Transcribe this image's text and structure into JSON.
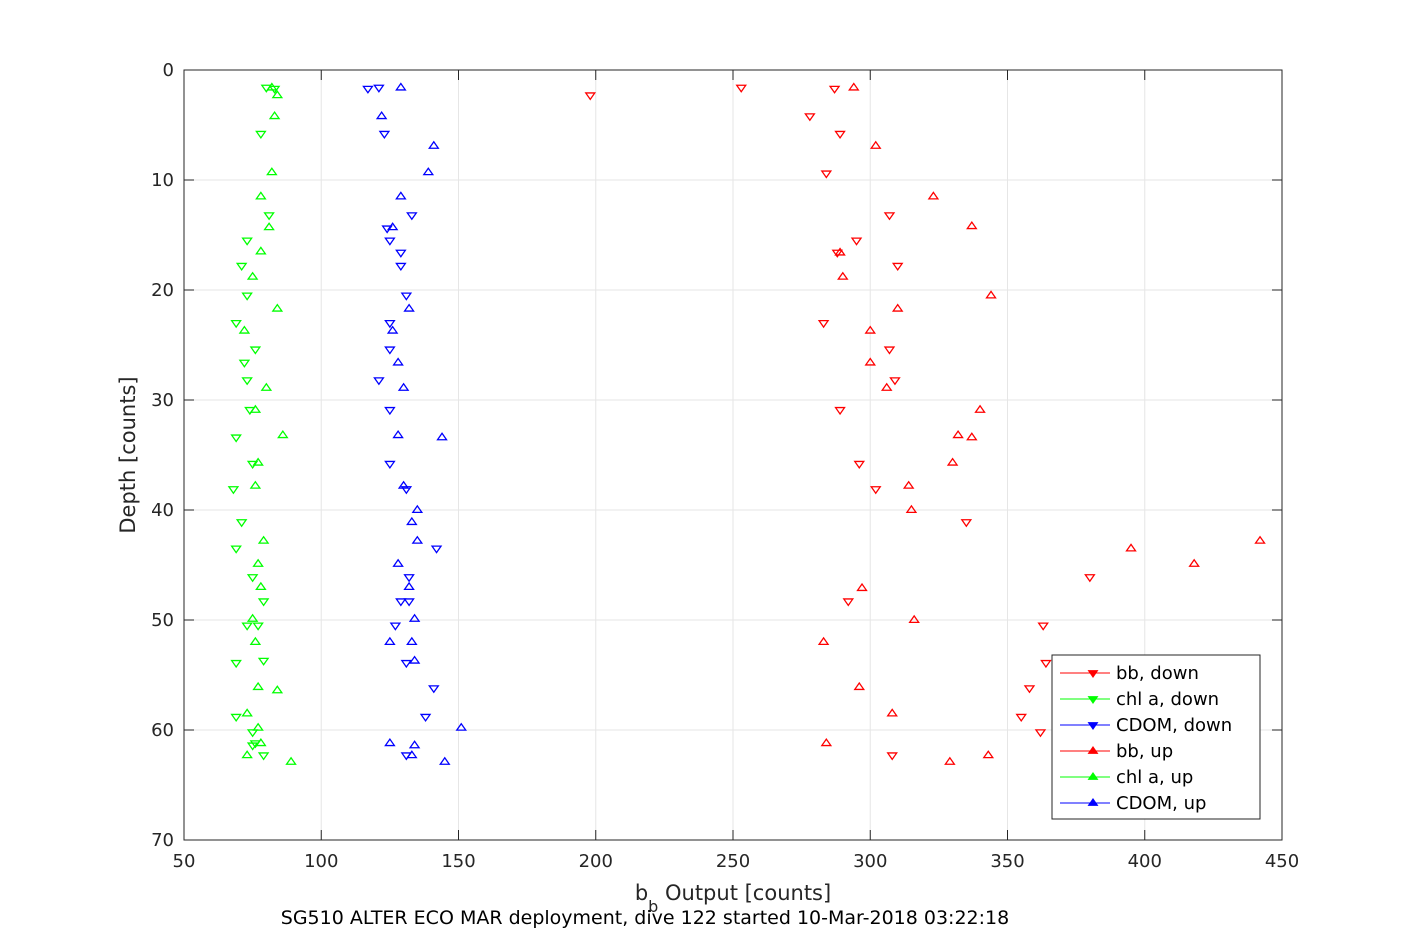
{
  "chart_data": {
    "type": "scatter",
    "title": "",
    "xlabel_main": "b",
    "xlabel_sub": "b",
    "xlabel_rest": " Output [counts]",
    "ylabel": "Depth [counts]",
    "caption": "SG510 ALTER ECO MAR deployment, dive 122 started 10-Mar-2018 03:22:18",
    "xlim": [
      50,
      450
    ],
    "ylim": [
      0,
      70
    ],
    "y_reversed": true,
    "grid": true,
    "legend_position": "bottom-right",
    "x_ticks": [
      "50",
      "100",
      "150",
      "200",
      "250",
      "300",
      "350",
      "400",
      "450"
    ],
    "y_ticks": [
      "0",
      "10",
      "20",
      "30",
      "40",
      "50",
      "60",
      "70"
    ],
    "series": [
      {
        "name": "bb, down",
        "color": "#ff0000",
        "marker": "triangle-down",
        "x": [
          253,
          198,
          287,
          278,
          289,
          284,
          307,
          295,
          288,
          310,
          283,
          307,
          309,
          289,
          296,
          302,
          335,
          380,
          292,
          363,
          364,
          358,
          355,
          362,
          308
        ],
        "y": [
          1.6,
          2.3,
          1.7,
          4.2,
          5.8,
          9.4,
          13.2,
          15.5,
          16.6,
          17.8,
          23.0,
          25.4,
          28.2,
          30.9,
          35.8,
          38.1,
          41.1,
          46.1,
          48.3,
          50.5,
          53.9,
          56.2,
          58.8,
          60.2,
          62.3
        ]
      },
      {
        "name": "chl a, down",
        "color": "#00ff00",
        "marker": "triangle-down",
        "x": [
          80,
          83,
          78,
          81,
          73,
          71,
          73,
          69,
          76,
          72,
          73,
          74,
          69,
          75,
          68,
          71,
          69,
          75,
          79,
          77,
          73,
          79,
          69,
          75,
          69,
          75,
          76,
          79
        ],
        "y": [
          1.6,
          1.7,
          5.8,
          13.2,
          15.5,
          17.8,
          20.5,
          23.0,
          25.4,
          26.6,
          28.2,
          30.9,
          33.4,
          35.8,
          38.1,
          41.1,
          43.5,
          46.1,
          48.3,
          50.5,
          50.5,
          53.7,
          53.9,
          60.2,
          58.8,
          61.4,
          61.2,
          62.3
        ]
      },
      {
        "name": "CDOM, down",
        "color": "#0000ff",
        "marker": "triangle-down",
        "x": [
          121,
          117,
          123,
          133,
          124,
          125,
          129,
          129,
          131,
          125,
          125,
          121,
          125,
          125,
          131,
          132,
          142,
          132,
          129,
          127,
          131,
          141,
          138,
          131
        ],
        "y": [
          1.6,
          1.7,
          5.8,
          13.2,
          14.4,
          15.5,
          16.6,
          17.8,
          20.5,
          23.0,
          25.4,
          28.2,
          30.9,
          35.8,
          38.1,
          46.1,
          43.5,
          48.3,
          48.3,
          50.5,
          53.9,
          56.2,
          58.8,
          62.3
        ]
      },
      {
        "name": "bb, up",
        "color": "#ff0000",
        "marker": "triangle-up",
        "x": [
          294,
          302,
          323,
          337,
          289,
          290,
          344,
          310,
          300,
          300,
          306,
          340,
          332,
          337,
          330,
          314,
          315,
          442,
          395,
          418,
          297,
          316,
          283,
          296,
          308,
          284,
          329,
          343
        ],
        "y": [
          1.6,
          6.9,
          11.5,
          14.2,
          16.6,
          18.8,
          20.5,
          21.7,
          23.7,
          26.6,
          28.9,
          30.9,
          33.2,
          33.4,
          35.7,
          37.8,
          40.0,
          42.8,
          43.5,
          44.9,
          47.1,
          50.0,
          52.0,
          56.1,
          58.5,
          61.2,
          62.9,
          62.3
        ]
      },
      {
        "name": "chl a, up",
        "color": "#00ff00",
        "marker": "triangle-up",
        "x": [
          82,
          84,
          83,
          82,
          78,
          81,
          78,
          75,
          84,
          72,
          80,
          76,
          86,
          77,
          76,
          79,
          77,
          78,
          75,
          76,
          77,
          84,
          73,
          77,
          78,
          73,
          89
        ],
        "y": [
          1.6,
          2.3,
          4.2,
          9.3,
          11.5,
          14.3,
          16.5,
          18.8,
          21.7,
          23.7,
          28.9,
          30.9,
          33.2,
          35.7,
          37.8,
          42.8,
          44.9,
          47.0,
          49.9,
          52.0,
          56.1,
          56.4,
          58.5,
          59.8,
          61.2,
          62.3,
          62.9
        ]
      },
      {
        "name": "CDOM, up",
        "color": "#0000ff",
        "marker": "triangle-up",
        "x": [
          129,
          122,
          141,
          139,
          129,
          126,
          132,
          126,
          128,
          130,
          128,
          144,
          130,
          135,
          133,
          135,
          128,
          132,
          134,
          133,
          125,
          134,
          151,
          125,
          134,
          133,
          145
        ],
        "y": [
          1.6,
          4.2,
          6.9,
          9.3,
          11.5,
          14.3,
          21.7,
          23.7,
          26.6,
          28.9,
          33.2,
          33.4,
          37.8,
          40.0,
          41.1,
          42.8,
          44.9,
          47.0,
          49.9,
          52.0,
          52.0,
          53.7,
          59.8,
          61.2,
          61.4,
          62.3,
          62.9
        ]
      }
    ]
  }
}
